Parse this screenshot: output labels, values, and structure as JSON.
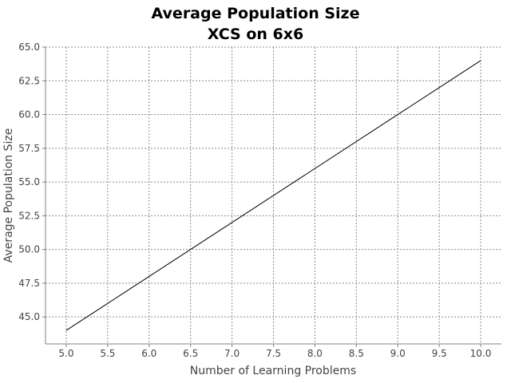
{
  "chart_data": {
    "type": "line",
    "title": "Average Population Size",
    "subtitle": "XCS on 6x6",
    "xlabel": "Number of Learning Problems",
    "ylabel": "Average Population Size",
    "xlim": [
      4.75,
      10.25
    ],
    "ylim": [
      43.0,
      65.0
    ],
    "x_ticks": [
      "5.0",
      "5.5",
      "6.0",
      "6.5",
      "7.0",
      "7.5",
      "8.0",
      "8.5",
      "9.0",
      "9.5",
      "10.0"
    ],
    "y_ticks": [
      "45.0",
      "47.5",
      "50.0",
      "52.5",
      "55.0",
      "57.5",
      "60.0",
      "62.5",
      "65.0"
    ],
    "grid": true,
    "series": [
      {
        "x": [
          5.0,
          10.0
        ],
        "y": [
          44.0,
          64.0
        ],
        "color": "#000000"
      }
    ]
  }
}
